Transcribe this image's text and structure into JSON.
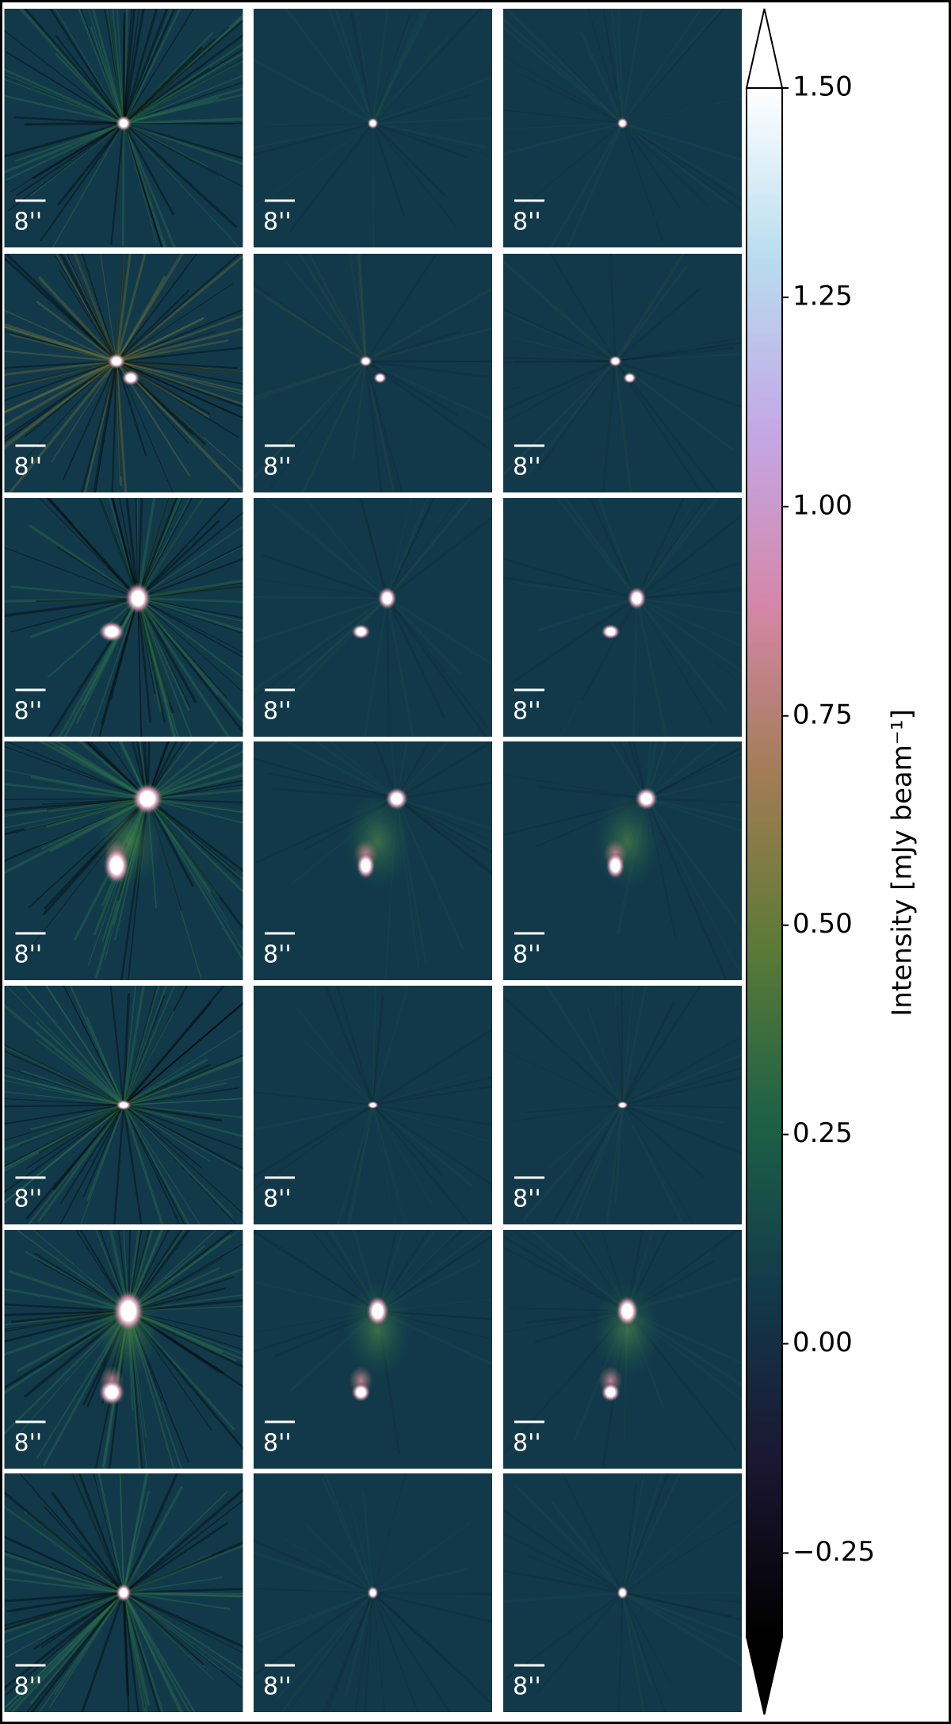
{
  "chart_data": {
    "type": "image-grid",
    "scale_bar_label": "8''",
    "colorbar": {
      "label": "Intensity [mJy beam⁻¹]",
      "clim": [
        -0.35,
        1.5
      ],
      "extend": "both",
      "colormap": [
        "#000000",
        "#1b1631",
        "#12394a",
        "#1d6146",
        "#5b7a37",
        "#a27c55",
        "#d487a8",
        "#c4a7e6",
        "#b8dcef",
        "#ffffff"
      ],
      "ticks": [
        {
          "value": -0.25,
          "label": "−0.25"
        },
        {
          "value": 0,
          "label": "0.00"
        },
        {
          "value": 0.25,
          "label": "0.25"
        },
        {
          "value": 0.5,
          "label": "0.50"
        },
        {
          "value": 0.75,
          "label": "0.75"
        },
        {
          "value": 1,
          "label": "1.00"
        },
        {
          "value": 1.25,
          "label": "1.25"
        },
        {
          "value": 1.5,
          "label": "1.50"
        }
      ]
    }
  }
}
